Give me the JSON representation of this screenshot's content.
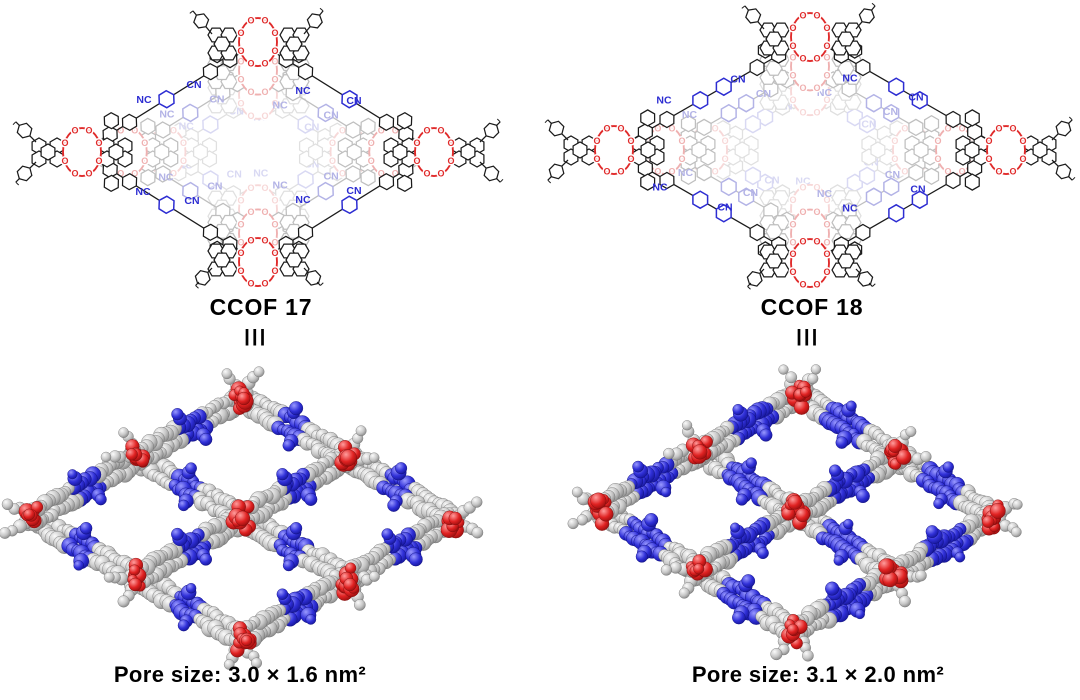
{
  "panels": [
    {
      "id": "ccof17",
      "title": "CCOF 17",
      "equiv_symbol": "III",
      "pore_size_label": "Pore size: 3.0 × 1.6 nm²",
      "pore_width_nm": "3.0",
      "pore_height_nm": "1.6"
    },
    {
      "id": "ccof18",
      "title": "CCOF 18",
      "equiv_symbol": "III",
      "pore_size_label": "Pore size: 3.1 × 2.0 nm²",
      "pore_width_nm": "3.1",
      "pore_height_nm": "2.0"
    }
  ],
  "atom_labels": {
    "oxygen": "O",
    "nitrile_left": "NC",
    "nitrile_right": "CN"
  },
  "colors": {
    "background": "#ffffff",
    "skeleton_black": "#1b1b1b",
    "macrocycle_red": "#e02a2a",
    "linker_blue": "#2d2dd2",
    "faded1": {
      "black": "#bfbfbf",
      "red": "#efb0b0",
      "blue": "#b3b3e6"
    },
    "faded2": {
      "black": "#e0e0e0",
      "red": "#f7d8d8",
      "blue": "#d9d9f3"
    },
    "sphere_grey": [
      "#fbfbfb",
      "#c6c6c6",
      "#7d7d7d"
    ],
    "sphere_red": [
      "#ff9d9d",
      "#e02222",
      "#8e0c0c"
    ],
    "sphere_blue": [
      "#9a9aff",
      "#3030d8",
      "#12128e"
    ]
  }
}
